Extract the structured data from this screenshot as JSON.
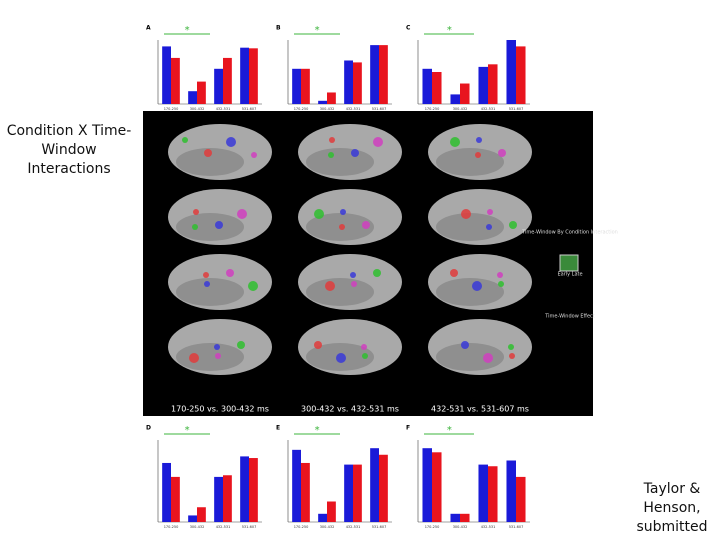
{
  "slide": {
    "label": "Condition X Time-Window Interactions",
    "credit": "Taylor & Henson, submitted",
    "brain_labels": [
      "170-250 vs. 300-432 ms",
      "300-432 vs. 432-531 ms",
      "432-531 vs. 531-607 ms"
    ],
    "legend": [
      "Time-Window By Condition Interaction",
      "Early Late",
      "Time-Window Effect"
    ]
  },
  "chart_data": [
    {
      "type": "bar",
      "panel": "A",
      "significance": "*",
      "categories": [
        "170-250",
        "300-432",
        "432-531",
        "531-607"
      ],
      "ylim": [
        0,
        1
      ],
      "series": [
        {
          "color": "#1a1ad8",
          "values": [
            0.9,
            0.2,
            0.55,
            0.88
          ]
        },
        {
          "color": "#e8141e",
          "values": [
            0.72,
            0.35,
            0.72,
            0.87
          ]
        }
      ]
    },
    {
      "type": "bar",
      "panel": "B",
      "significance": "*",
      "categories": [
        "170-250",
        "300-432",
        "432-531",
        "531-607"
      ],
      "ylim": [
        0,
        1
      ],
      "series": [
        {
          "color": "#1a1ad8",
          "values": [
            0.55,
            0.05,
            0.68,
            0.92
          ]
        },
        {
          "color": "#e8141e",
          "values": [
            0.55,
            0.18,
            0.65,
            0.92
          ]
        }
      ]
    },
    {
      "type": "bar",
      "panel": "C",
      "significance": "*",
      "categories": [
        "170-250",
        "300-432",
        "432-531",
        "531-607"
      ],
      "ylim": [
        0,
        1
      ],
      "series": [
        {
          "color": "#1a1ad8",
          "values": [
            0.55,
            0.15,
            0.58,
            1.0
          ]
        },
        {
          "color": "#e8141e",
          "values": [
            0.5,
            0.32,
            0.62,
            0.9
          ]
        }
      ]
    },
    {
      "type": "bar",
      "panel": "D",
      "significance": "*",
      "categories": [
        "170-250",
        "300-432",
        "432-531",
        "531-607"
      ],
      "ylim": [
        0,
        1
      ],
      "series": [
        {
          "color": "#1a1ad8",
          "values": [
            0.72,
            0.08,
            0.55,
            0.8
          ]
        },
        {
          "color": "#e8141e",
          "values": [
            0.55,
            0.18,
            0.57,
            0.78
          ]
        }
      ]
    },
    {
      "type": "bar",
      "panel": "E",
      "significance": "*",
      "categories": [
        "170-250",
        "300-432",
        "432-531",
        "531-607"
      ],
      "ylim": [
        0,
        1
      ],
      "series": [
        {
          "color": "#1a1ad8",
          "values": [
            0.88,
            0.1,
            0.7,
            0.9
          ]
        },
        {
          "color": "#e8141e",
          "values": [
            0.72,
            0.25,
            0.7,
            0.82
          ]
        }
      ]
    },
    {
      "type": "bar",
      "panel": "F",
      "significance": "*",
      "categories": [
        "170-250",
        "300-432",
        "432-531",
        "531-607"
      ],
      "ylim": [
        0,
        1
      ],
      "series": [
        {
          "color": "#1a1ad8",
          "values": [
            0.9,
            0.1,
            0.7,
            0.75
          ]
        },
        {
          "color": "#e8141e",
          "values": [
            0.85,
            0.1,
            0.68,
            0.55
          ]
        }
      ]
    }
  ]
}
